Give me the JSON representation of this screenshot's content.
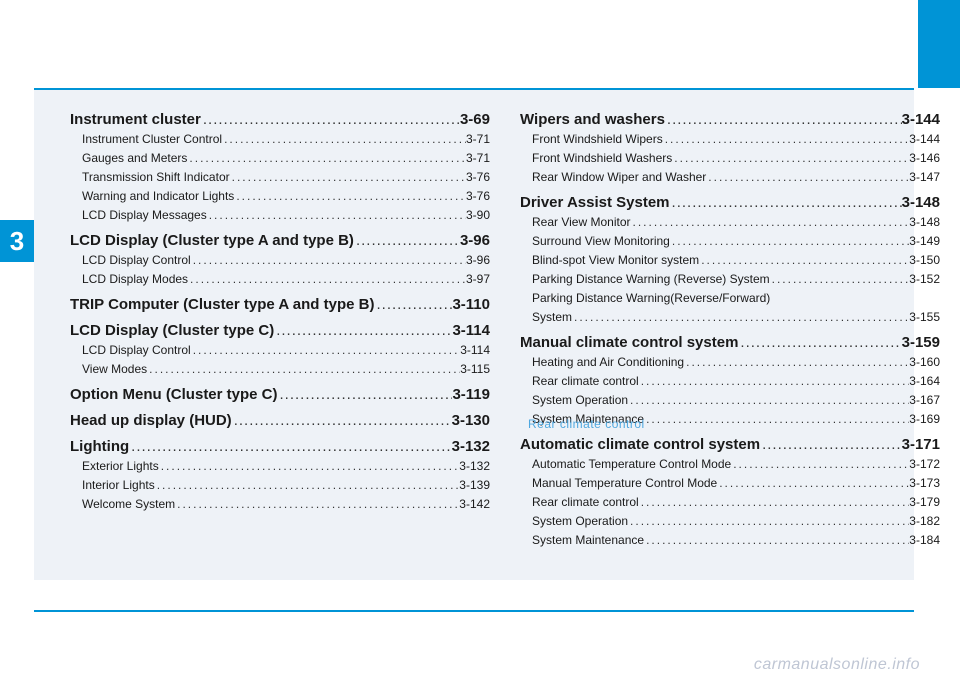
{
  "chapter_number": "3",
  "watermark": "carmanualsonline.info",
  "rear_climate_overlay": "Rear climate control",
  "colors": {
    "accent": "#0094d6",
    "content_bg": "#eef2f7",
    "text": "#1a1a1a",
    "watermark": "#bfc6d4",
    "link": "#4fa8e0"
  },
  "left_col": [
    {
      "level": 1,
      "label": "Instrument cluster",
      "page": "3-69"
    },
    {
      "level": 2,
      "label": "Instrument Cluster Control",
      "page": "3-71"
    },
    {
      "level": 2,
      "label": "Gauges and Meters",
      "page": "3-71"
    },
    {
      "level": 2,
      "label": "Transmission Shift Indicator",
      "page": "3-76"
    },
    {
      "level": 2,
      "label": "Warning and Indicator Lights",
      "page": "3-76"
    },
    {
      "level": 2,
      "label": "LCD Display Messages",
      "page": "3-90"
    },
    {
      "level": 1,
      "label": "LCD Display (Cluster type A and type B)",
      "page": "3-96"
    },
    {
      "level": 2,
      "label": "LCD Display Control",
      "page": "3-96"
    },
    {
      "level": 2,
      "label": "LCD Display Modes",
      "page": "3-97"
    },
    {
      "level": 1,
      "label": "TRIP Computer (Cluster type A and type B)",
      "page": "3-110"
    },
    {
      "level": 1,
      "label": "LCD Display (Cluster type C)",
      "page": "3-114"
    },
    {
      "level": 2,
      "label": "LCD Display Control",
      "page": "3-114"
    },
    {
      "level": 2,
      "label": "View Modes",
      "page": "3-115"
    },
    {
      "level": 1,
      "label": "Option Menu (Cluster type C)",
      "page": "3-119"
    },
    {
      "level": 1,
      "label": "Head up display (HUD)",
      "page": "3-130"
    },
    {
      "level": 1,
      "label": "Lighting",
      "page": "3-132"
    },
    {
      "level": 2,
      "label": "Exterior Lights",
      "page": "3-132"
    },
    {
      "level": 2,
      "label": "Interior Lights",
      "page": "3-139"
    },
    {
      "level": 2,
      "label": "Welcome System",
      "page": "3-142"
    }
  ],
  "right_col": [
    {
      "level": 1,
      "label": "Wipers and washers",
      "page": "3-144"
    },
    {
      "level": 2,
      "label": "Front Windshield Wipers",
      "page": "3-144"
    },
    {
      "level": 2,
      "label": "Front Windshield Washers",
      "page": "3-146"
    },
    {
      "level": 2,
      "label": "Rear Window Wiper and Washer",
      "page": "3-147"
    },
    {
      "level": 1,
      "label": "Driver Assist System",
      "page": "3-148"
    },
    {
      "level": 2,
      "label": "Rear View Monitor",
      "page": "3-148"
    },
    {
      "level": 2,
      "label": "Surround View Monitoring",
      "page": "3-149"
    },
    {
      "level": 2,
      "label": "Blind-spot View Monitor system",
      "page": "3-150"
    },
    {
      "level": 2,
      "label": "Parking Distance Warning (Reverse) System",
      "page": "3-152"
    },
    {
      "level": 2,
      "label": "Parking Distance Warning(Reverse/Forward)",
      "page": ""
    },
    {
      "level": 2,
      "label": "System",
      "page": "3-155"
    },
    {
      "level": 1,
      "label": "Manual climate control system",
      "page": "3-159"
    },
    {
      "level": 2,
      "label": "Heating and Air Conditioning",
      "page": "3-160"
    },
    {
      "level": 2,
      "label": "Rear climate control",
      "page": "3-164"
    },
    {
      "level": 2,
      "label": "System Operation",
      "page": "3-167"
    },
    {
      "level": 2,
      "label": "System Maintenance",
      "page": "3-169"
    },
    {
      "level": 1,
      "label": "Automatic climate control system",
      "page": "3-171"
    },
    {
      "level": 2,
      "label": "Automatic Temperature Control Mode",
      "page": "3-172"
    },
    {
      "level": 2,
      "label": "Manual Temperature Control Mode",
      "page": "3-173"
    },
    {
      "level": 2,
      "label": "Rear climate control",
      "page": "3-179"
    },
    {
      "level": 2,
      "label": "System Operation",
      "page": "3-182"
    },
    {
      "level": 2,
      "label": "System Maintenance",
      "page": "3-184"
    }
  ]
}
